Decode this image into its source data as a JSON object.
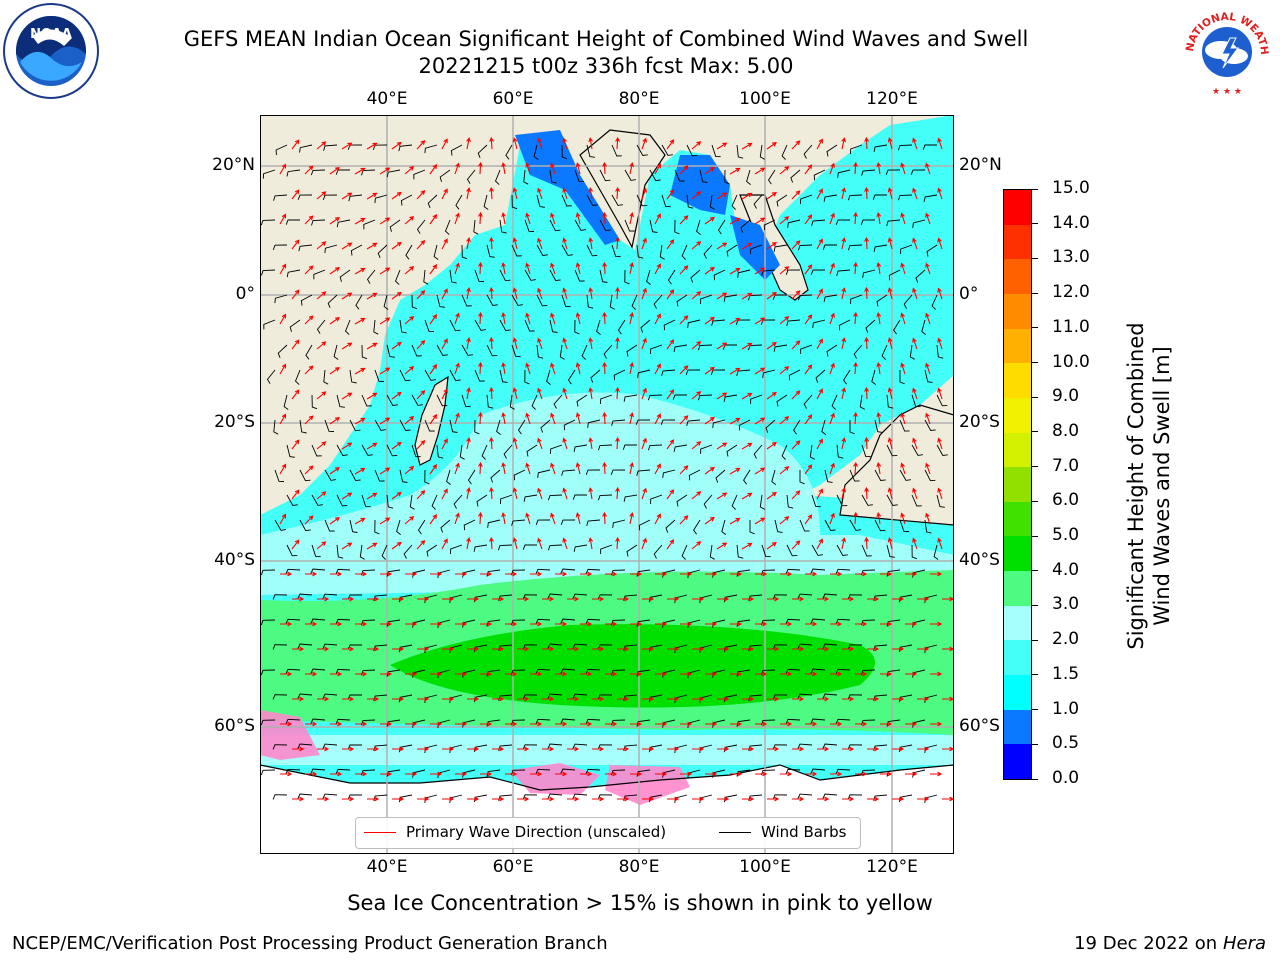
{
  "title_line1": "GEFS MEAN Indian Ocean Significant Height of Combined Wind Waves and Swell",
  "title_line2": "20221215 t00z 336h fcst   Max: 5.00",
  "logos": {
    "left": "NOAA",
    "right_ring": "NATIONAL WEATHER SERVICE"
  },
  "map": {
    "lon_labels": [
      "40°E",
      "60°E",
      "80°E",
      "100°E",
      "120°E"
    ],
    "lat_labels": [
      "20°N",
      "0°",
      "20°S",
      "40°S",
      "60°S"
    ],
    "lon_range": [
      20,
      130
    ],
    "lat_range": [
      -75,
      27
    ],
    "gridlines": true,
    "colors": {
      "land": "#efecdc",
      "ice_free_white": "#ffffff",
      "wave_dir": "#ff0000",
      "barb": "#000000"
    }
  },
  "legend": {
    "wave_dir": "Primary Wave Direction (unscaled)",
    "wind_barbs": "Wind Barbs"
  },
  "colorbar": {
    "label_line1": "Significant Height of Combined",
    "label_line2": "Wind Waves and Swell [m]",
    "ticks": [
      "0.0",
      "0.5",
      "1.0",
      "1.5",
      "2.0",
      "3.0",
      "4.0",
      "5.0",
      "6.0",
      "7.0",
      "8.0",
      "9.0",
      "10.0",
      "11.0",
      "12.0",
      "13.0",
      "14.0",
      "15.0"
    ],
    "colors": [
      "#0000ff",
      "#0a78ff",
      "#00ffff",
      "#44fff8",
      "#a6fffa",
      "#4dfa82",
      "#00e000",
      "#40e000",
      "#92e000",
      "#d2f000",
      "#f0f000",
      "#ffdc00",
      "#ffb000",
      "#ff8c00",
      "#ff6000",
      "#ff3000",
      "#ff0000"
    ]
  },
  "footer_note": "Sea Ice Concentration > 15% is shown in pink to yellow",
  "footer_left": "NCEP/EMC/Verification Post Processing Product Generation Branch",
  "footer_right_date": "19 Dec 2022 on",
  "footer_right_host": "Hera"
}
